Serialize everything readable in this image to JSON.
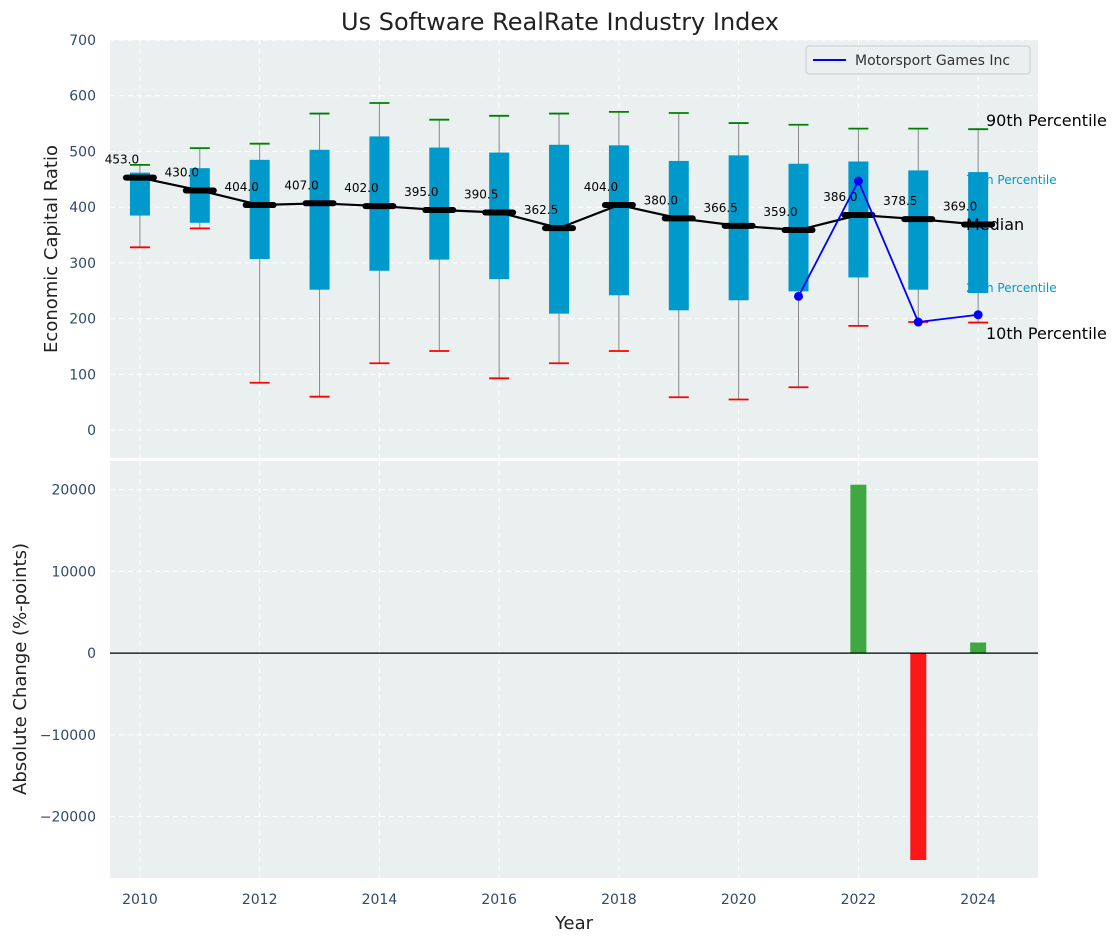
{
  "chart_data": {
    "type": "box",
    "title": "Us Software RealRate Industry Index",
    "xlabel": "Year",
    "top_ylabel": "Economic Capital Ratio",
    "bottom_ylabel": "Absolute Change (%-points)",
    "top_ylim": [
      -50,
      700
    ],
    "top_yticks": [
      0,
      100,
      200,
      300,
      400,
      500,
      600,
      700
    ],
    "bottom_ylim": [
      -27500,
      23500
    ],
    "bottom_yticks": [
      -20000,
      -10000,
      0,
      10000,
      20000
    ],
    "xlim": [
      2009.5,
      2025.0
    ],
    "xticks": [
      2010,
      2012,
      2014,
      2016,
      2018,
      2020,
      2022,
      2024
    ],
    "grid": true,
    "legend_position": "top-right",
    "industry": {
      "years": [
        2010,
        2011,
        2012,
        2013,
        2014,
        2015,
        2016,
        2017,
        2018,
        2019,
        2020,
        2021,
        2022,
        2023,
        2024
      ],
      "p10": [
        328,
        362,
        85,
        60,
        120,
        142,
        93,
        120,
        142,
        59,
        55,
        77,
        187,
        194,
        193
      ],
      "p25": [
        385,
        372,
        307,
        252,
        286,
        306,
        271,
        209,
        242,
        215,
        233,
        249,
        274,
        252,
        246
      ],
      "median": [
        453.0,
        430.0,
        404.0,
        407.0,
        402.0,
        395.0,
        390.5,
        362.5,
        404.0,
        380.0,
        366.5,
        359.0,
        386.0,
        378.5,
        369.0
      ],
      "p75": [
        462,
        470,
        485,
        503,
        527,
        507,
        498,
        512,
        511,
        483,
        493,
        478,
        482,
        466,
        463
      ],
      "p90": [
        476,
        506,
        514,
        568,
        587,
        557,
        564,
        568,
        571,
        569,
        551,
        548,
        541,
        541,
        540
      ],
      "median_labels": [
        "453.0",
        "430.0",
        "404.0",
        "407.0",
        "402.0",
        "395.0",
        "390.5",
        "362.5",
        "404.0",
        "380.0",
        "366.5",
        "359.0",
        "386.0",
        "378.5",
        "369.0"
      ]
    },
    "series": [
      {
        "name": "Motorsport Games Inc",
        "x": [
          2021,
          2022,
          2023,
          2024
        ],
        "y": [
          240,
          447,
          194,
          207
        ],
        "color": "#0000ff"
      }
    ],
    "changes": {
      "x": [
        2022,
        2023,
        2024
      ],
      "values": [
        20600,
        -25300,
        1300
      ],
      "colors": [
        "#2ca02c",
        "#ff0000",
        "#2ca02c"
      ]
    },
    "side_labels": {
      "p90": "90th Percentile",
      "p75": "75th Percentile",
      "median": "Median",
      "p25": "25th Percentile",
      "p10": "10th Percentile"
    },
    "colors": {
      "box": "#0099cc",
      "panel_bg": "#eaeff0",
      "median": "#000000",
      "whisker": "#888888",
      "cap_high": "#008000",
      "cap_low": "#ff0000",
      "axis_text": "#2f4a6a",
      "side_label_quartile": "#0099cc"
    }
  }
}
